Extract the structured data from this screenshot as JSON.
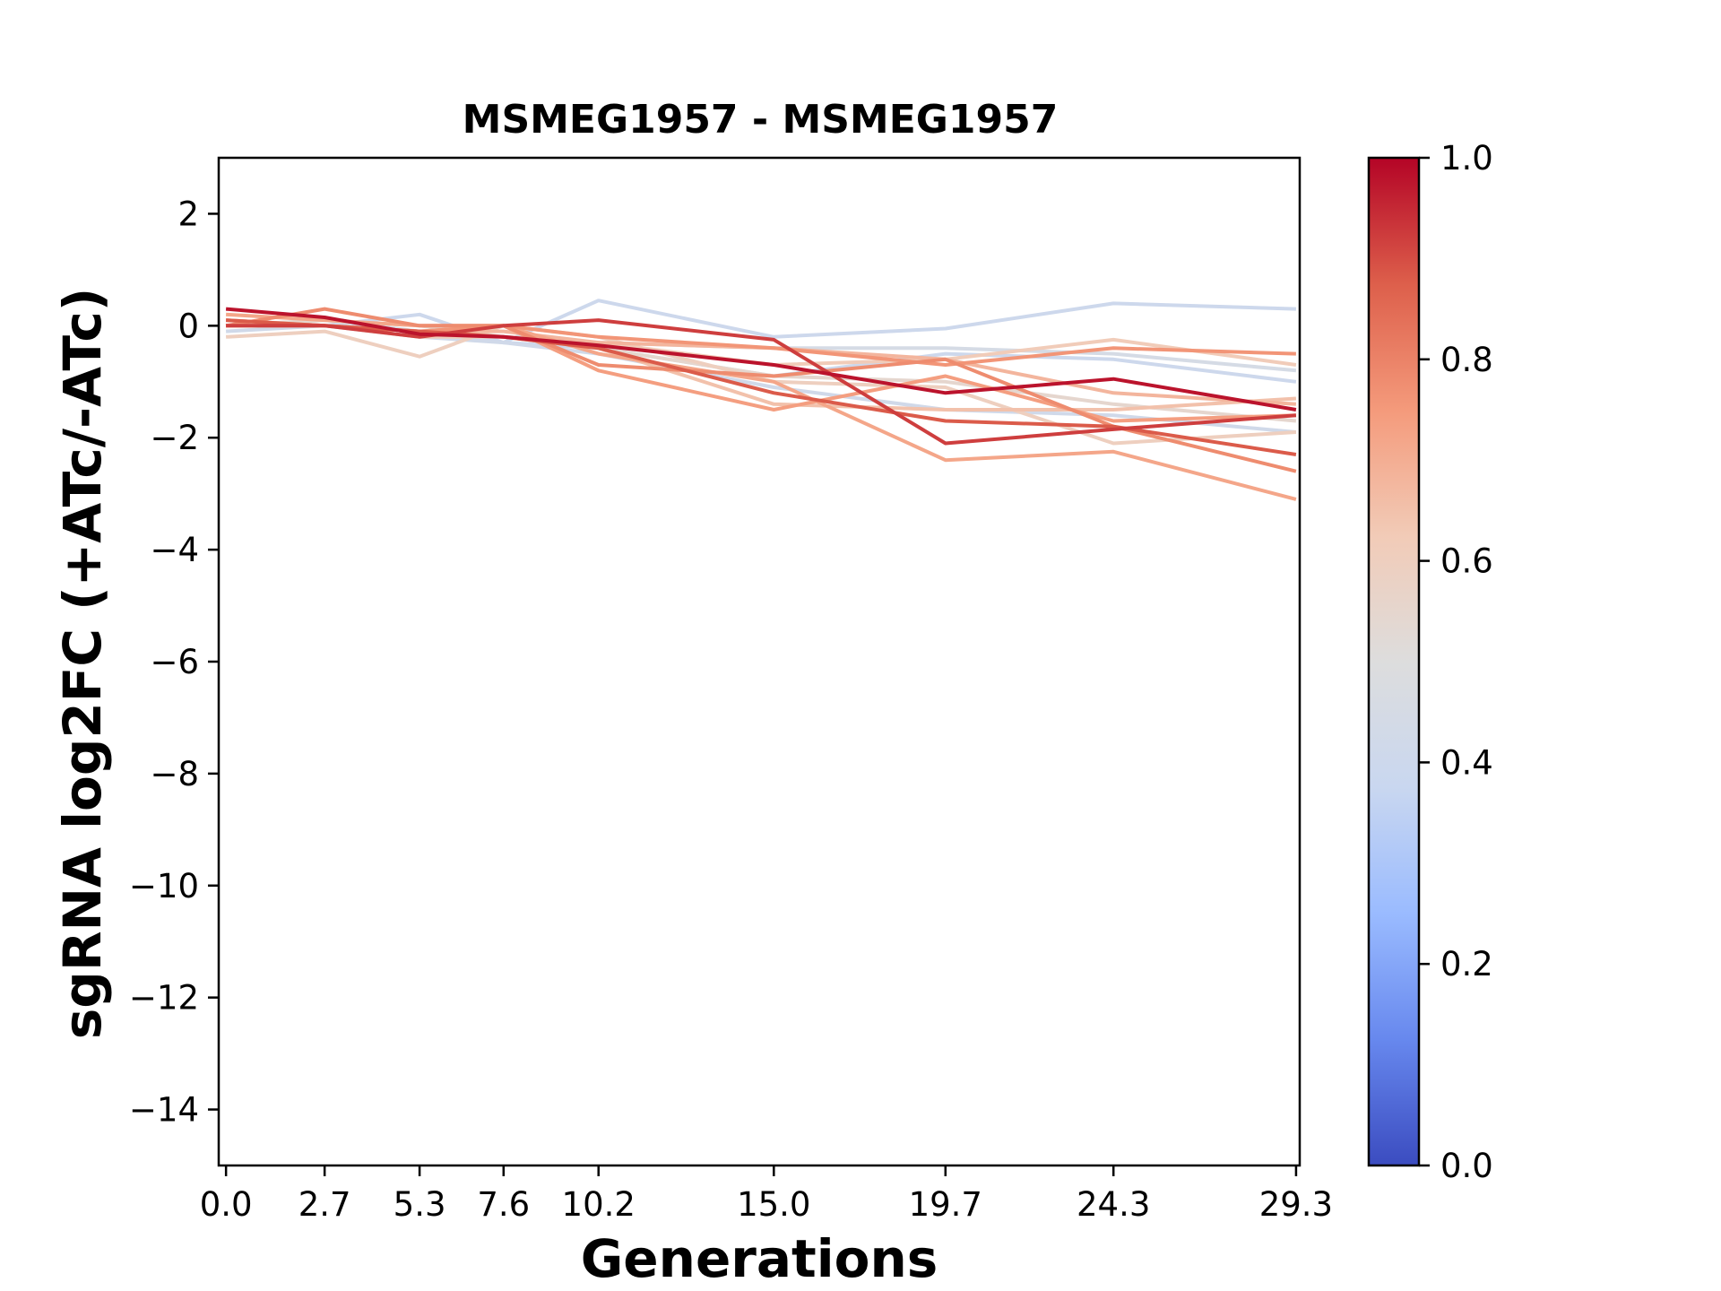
{
  "chart_data": {
    "type": "line",
    "title": "MSMEG1957 - MSMEG1957",
    "xlabel": "Generations",
    "ylabel": "sgRNA log2FC (+ATc/-ATc)",
    "x": [
      0.0,
      2.7,
      5.3,
      7.6,
      10.2,
      15.0,
      19.7,
      24.3,
      29.3
    ],
    "x_tick_labels": [
      "0.0",
      "2.7",
      "5.3",
      "7.6",
      "10.2",
      "15.0",
      "19.7",
      "24.3",
      "29.3"
    ],
    "xlim": [
      -0.2,
      29.4
    ],
    "ylim": [
      -15,
      3
    ],
    "y_ticks": [
      2,
      0,
      -2,
      -4,
      -6,
      -8,
      -10,
      -12,
      -14
    ],
    "y_tick_labels": [
      "2",
      "0",
      "−2",
      "−4",
      "−6",
      "−8",
      "−10",
      "−12",
      "−14"
    ],
    "grid": false,
    "colormap": "coolwarm",
    "colorbar": {
      "range": [
        0.0,
        1.0
      ],
      "ticks": [
        1.0,
        0.8,
        0.6,
        0.4,
        0.2,
        0.0
      ],
      "tick_labels": [
        "1.0",
        "0.8",
        "0.6",
        "0.4",
        "0.2",
        "0.0"
      ],
      "colors": [
        "#3b4cc0",
        "#6788ee",
        "#9abbff",
        "#c9d7f0",
        "#dddddd",
        "#f2cbb7",
        "#f49a7b",
        "#dd5f4b",
        "#b40426"
      ]
    },
    "series": [
      {
        "value": 0.4,
        "y": [
          0.0,
          0.0,
          0.2,
          -0.3,
          0.45,
          -0.2,
          -0.05,
          0.4,
          0.3
        ]
      },
      {
        "value": 0.4,
        "y": [
          0.1,
          0.0,
          -0.1,
          -0.3,
          -0.4,
          -0.9,
          -0.5,
          -0.6,
          -1.0
        ]
      },
      {
        "value": 0.42,
        "y": [
          -0.1,
          0.0,
          -0.2,
          -0.3,
          -0.5,
          -1.1,
          -1.5,
          -1.6,
          -1.9
        ]
      },
      {
        "value": 0.45,
        "y": [
          0.0,
          0.1,
          -0.1,
          -0.2,
          -0.3,
          -0.4,
          -0.4,
          -0.5,
          -0.8
        ]
      },
      {
        "value": 0.55,
        "y": [
          0.0,
          0.1,
          0.0,
          -0.2,
          -0.4,
          -0.9,
          -1.0,
          -1.4,
          -1.7
        ]
      },
      {
        "value": 0.6,
        "y": [
          -0.2,
          -0.1,
          -0.55,
          0.0,
          -0.2,
          -1.0,
          -1.1,
          -2.1,
          -1.9
        ]
      },
      {
        "value": 0.62,
        "y": [
          0.1,
          0.0,
          -0.2,
          -0.2,
          -0.3,
          -0.7,
          -0.6,
          -0.25,
          -0.7
        ]
      },
      {
        "value": 0.65,
        "y": [
          0.0,
          0.0,
          -0.1,
          -0.2,
          -0.4,
          -1.4,
          -1.5,
          -1.5,
          -1.3
        ]
      },
      {
        "value": 0.68,
        "y": [
          0.1,
          0.0,
          -0.1,
          -0.1,
          -0.3,
          -0.4,
          -0.6,
          -1.2,
          -1.4
        ]
      },
      {
        "value": 0.72,
        "y": [
          0.2,
          0.1,
          0.0,
          0.0,
          -0.5,
          -1.0,
          -2.4,
          -2.25,
          -3.1
        ]
      },
      {
        "value": 0.74,
        "y": [
          0.0,
          0.0,
          -0.1,
          0.0,
          -0.8,
          -1.5,
          -0.9,
          -1.7,
          -1.6
        ]
      },
      {
        "value": 0.76,
        "y": [
          0.0,
          0.0,
          -0.1,
          0.0,
          -0.2,
          -0.4,
          -0.7,
          -0.4,
          -0.5
        ]
      },
      {
        "value": 0.78,
        "y": [
          0.0,
          0.3,
          0.0,
          0.0,
          -0.7,
          -0.9,
          -0.6,
          -1.8,
          -2.6
        ]
      },
      {
        "value": 0.88,
        "y": [
          0.1,
          0.0,
          -0.1,
          -0.2,
          -0.4,
          -1.2,
          -1.7,
          -1.8,
          -2.3
        ]
      },
      {
        "value": 0.92,
        "y": [
          0.0,
          0.0,
          -0.2,
          0.0,
          0.1,
          -0.25,
          -2.1,
          -1.85,
          -1.6
        ]
      },
      {
        "value": 0.98,
        "y": [
          0.3,
          0.15,
          -0.15,
          -0.2,
          -0.35,
          -0.7,
          -1.2,
          -0.95,
          -1.5
        ]
      }
    ]
  }
}
